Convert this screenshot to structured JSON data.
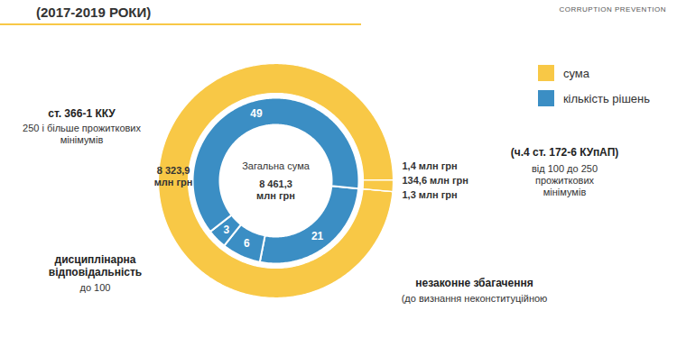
{
  "chart_data": {
    "type": "donut",
    "title": "(2017-2019 РОКИ)",
    "categories": [
      "ст. 366-1 ККУ",
      "(ч.4 ст. 172-6 КУпАП)",
      "незаконне збагачення",
      "дисциплінарна відповідальність"
    ],
    "category_descriptions": [
      "250 і більше прожиткових мінімумів",
      "від 100 до 250 прожиткових мінімумів",
      "(до визнання неконституційною",
      "до 100"
    ],
    "series": [
      {
        "name": "сума",
        "color": "#f8c846",
        "values": [
          8323.9,
          1.4,
          134.6,
          1.3
        ],
        "value_labels": [
          "8 323,9 млн грн",
          "1,4 млн грн",
          "134,6 млн грн",
          "1,3 млн грн"
        ]
      },
      {
        "name": "кількість рішень",
        "color": "#3b8ec4",
        "values": [
          21,
          6,
          3,
          49
        ]
      }
    ],
    "center_label": [
      "Загальна сума",
      "8 461,3 млн грн"
    ],
    "data_labels": true,
    "legend": "top-right",
    "tick_labels": false,
    "logo_text": "CORRUPTION PREVENTION"
  }
}
